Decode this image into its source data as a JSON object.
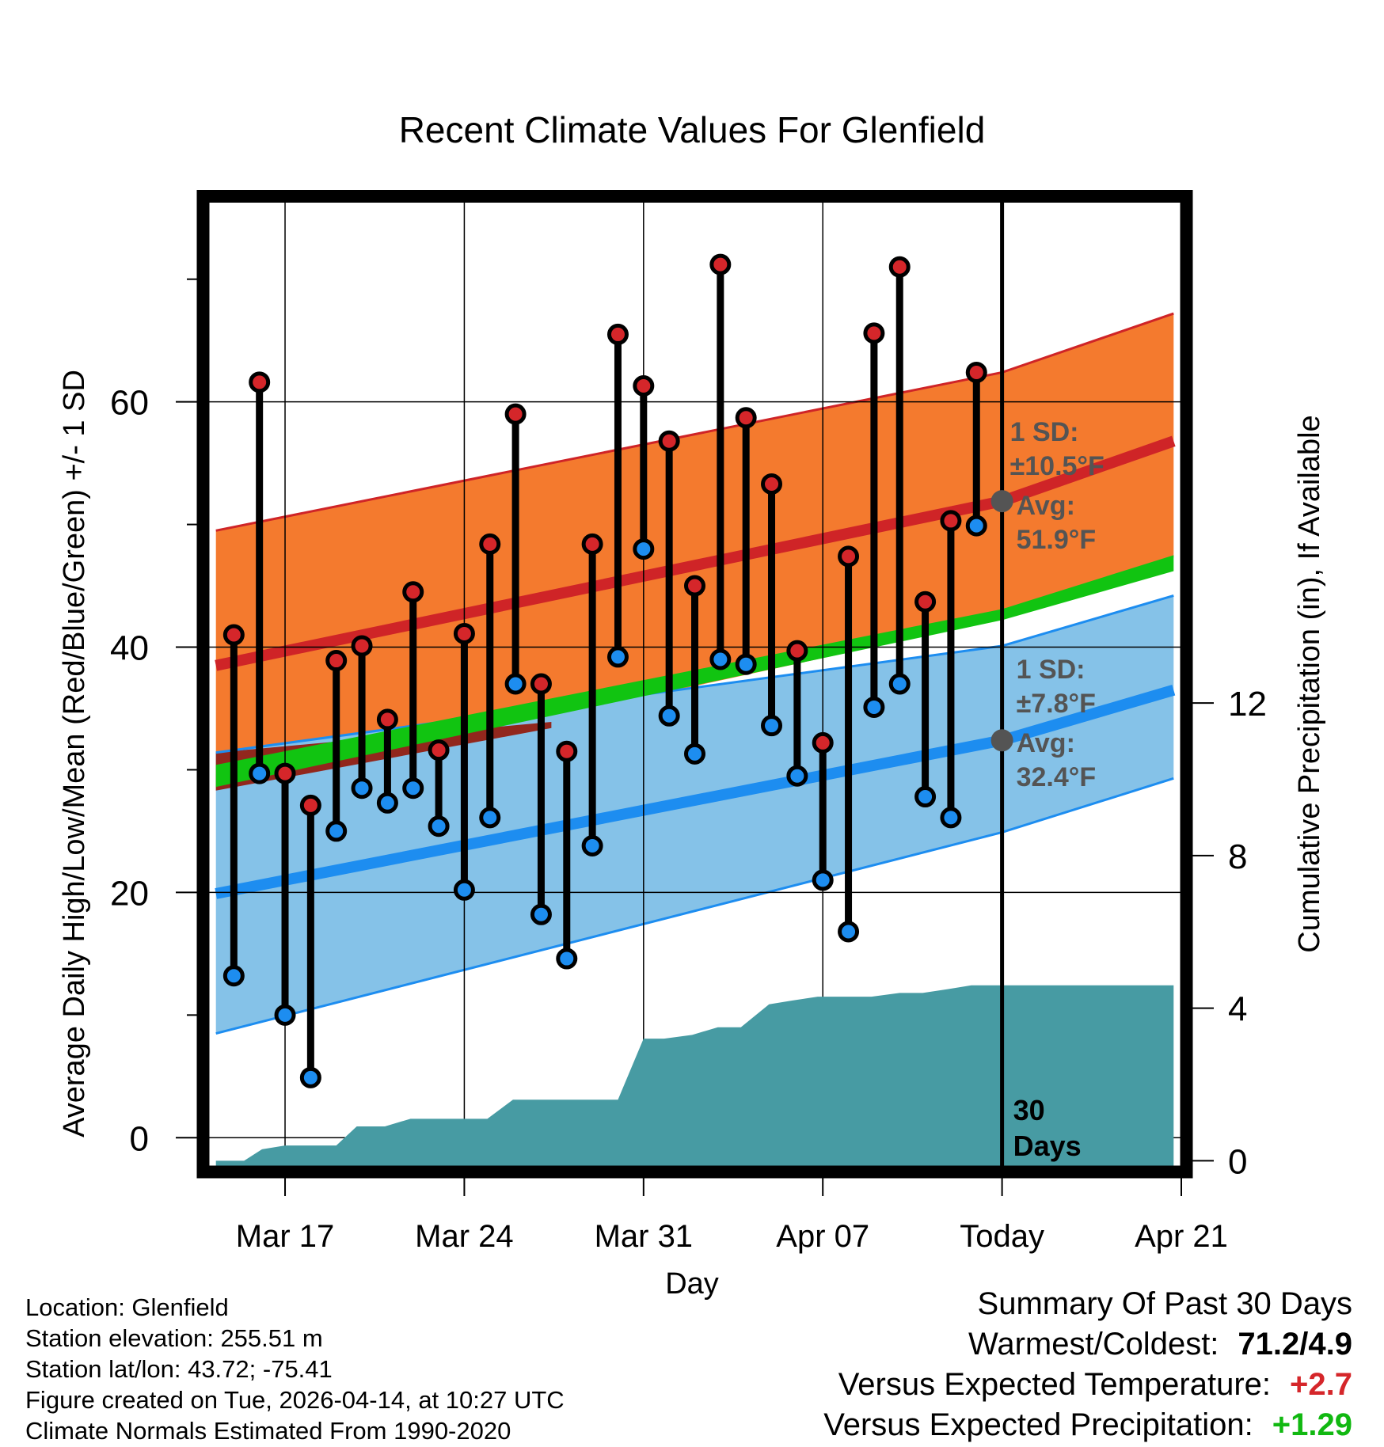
{
  "chart_data": {
    "type": "line",
    "title": "Recent Climate Values For Glenfield",
    "xlabel": "Day",
    "ylabel": "Average Daily High/Low/Mean (Red/Blue/Green) +/- 1 SD",
    "y2label": "Cumulative Precipitation (in), If Available",
    "xlim": [
      -3,
      35
    ],
    "ylim": [
      -2.5,
      76.5
    ],
    "y2lim": [
      -0.2,
      25.2
    ],
    "y_ticks": [
      0,
      20,
      40,
      60
    ],
    "y_minor_ticks": [
      10,
      30,
      50,
      70
    ],
    "y2_ticks": [
      0,
      4,
      8,
      12
    ],
    "x_ticks": [
      {
        "x": 0,
        "label": "Mar 17"
      },
      {
        "x": 7,
        "label": "Mar 24"
      },
      {
        "x": 14,
        "label": "Mar 31"
      },
      {
        "x": 21,
        "label": "Apr 07"
      },
      {
        "x": 28,
        "label": "Today"
      },
      {
        "x": 35,
        "label": "Apr 21"
      }
    ],
    "x_note": "x = days since Mar 17",
    "today_x": 28,
    "today_marker_label": [
      "30",
      "Days"
    ],
    "normals": {
      "x": [
        -2.7,
        28,
        34.7
      ],
      "high_mean": [
        38.5,
        51.9,
        56.8
      ],
      "high_sd_upper": [
        49.5,
        62.4,
        67.2
      ],
      "high_sd_lower": [
        28.3,
        42.3,
        47.3
      ],
      "low_mean": [
        19.9,
        32.4,
        36.5
      ],
      "low_sd_upper": [
        31.4,
        40.1,
        44.2
      ],
      "low_sd_lower": [
        8.5,
        24.9,
        29.3
      ],
      "mean_upper": [
        30.4,
        43.1,
        47.5
      ],
      "mean_lower": [
        28.6,
        42.2,
        46.2
      ]
    },
    "series": [
      {
        "name": "Daily High",
        "x": [
          -2,
          -1,
          0,
          1,
          2,
          3,
          4,
          5,
          6,
          7,
          8,
          9,
          10,
          11,
          12,
          13,
          14,
          15,
          16,
          17,
          18,
          19,
          20,
          21,
          22,
          23,
          24,
          25,
          26,
          27
        ],
        "values": [
          41,
          61.6,
          29.7,
          27.1,
          38.9,
          40.1,
          34.1,
          44.5,
          31.6,
          41.1,
          48.4,
          59,
          37,
          31.5,
          48.4,
          65.5,
          61.3,
          56.8,
          45,
          71.2,
          58.7,
          53.3,
          39.7,
          32.2,
          47.4,
          65.6,
          71,
          43.7,
          50.3,
          62.4
        ]
      },
      {
        "name": "Daily Low",
        "x": [
          -2,
          -1,
          0,
          1,
          2,
          3,
          4,
          5,
          6,
          7,
          8,
          9,
          10,
          11,
          12,
          13,
          14,
          15,
          16,
          17,
          18,
          19,
          20,
          21,
          22,
          23,
          24,
          25,
          26,
          27
        ],
        "values": [
          13.2,
          29.7,
          10,
          4.9,
          25,
          28.5,
          27.3,
          28.5,
          25.4,
          20.2,
          26.1,
          37,
          18.2,
          14.6,
          23.8,
          39.2,
          48,
          34.4,
          31.3,
          39,
          38.6,
          33.6,
          29.5,
          21,
          16.8,
          35.1,
          37,
          27.8,
          26.1,
          49.9
        ]
      },
      {
        "name": "Cumulative Precipitation",
        "axis": "y2",
        "x": [
          -2.7,
          -1.6,
          -0.9,
          0,
          1,
          2,
          2.8,
          3.9,
          4.9,
          5.8,
          6.9,
          7.9,
          8.9,
          9.7,
          10.9,
          11.9,
          13,
          14,
          14.8,
          15.9,
          16.9,
          17.8,
          18.9,
          19.8,
          20.8,
          21.9,
          22.9,
          24,
          24.9,
          25.9,
          26.8,
          27.7,
          34.7
        ],
        "values": [
          0,
          0,
          0.3,
          0.4,
          0.4,
          0.4,
          0.9,
          0.9,
          1.1,
          1.1,
          1.1,
          1.1,
          1.6,
          1.6,
          1.6,
          1.6,
          1.6,
          3.2,
          3.2,
          3.3,
          3.5,
          3.5,
          4.1,
          4.2,
          4.3,
          4.3,
          4.3,
          4.4,
          4.4,
          4.5,
          4.6,
          4.6,
          4.6
        ]
      }
    ],
    "annotations": {
      "high": {
        "sd_label": "1 SD:",
        "sd_value": "±10.5°F",
        "avg_label": "Avg:",
        "avg_value": "51.9°F",
        "avg": 51.9
      },
      "low": {
        "sd_label": "1 SD:",
        "sd_value": "±7.8°F",
        "avg_label": "Avg:",
        "avg_value": "32.4°F",
        "avg": 32.4
      }
    },
    "colors": {
      "high_band": "#f47a2e",
      "high_line": "#cf2427",
      "low_band": "#85c2e8",
      "low_line": "#1d8df0",
      "mean_band": "#11c411",
      "overlap": "#92271d",
      "precip": "#479ba3",
      "high_point": "#d5262a",
      "low_point": "#1d8df0",
      "annotation": "#545454"
    }
  },
  "footer": {
    "location": "Location: Glenfield",
    "elevation": "Station elevation: 255.51 m",
    "latlon": "Station lat/lon: 43.72; -75.41",
    "created": "Figure created on Tue, 2026-04-14, at 10:27 UTC",
    "normals": "Climate Normals Estimated From 1990-2020"
  },
  "summary": {
    "title": "Summary Of Past 30 Days",
    "warmest_coldest_label": "Warmest/Coldest:",
    "warmest_coldest_value": "71.2/4.9",
    "temp_label": "Versus Expected Temperature:",
    "temp_value": "+2.7",
    "precip_label": "Versus Expected Precipitation:",
    "precip_value": "+1.29",
    "temp_color": "#d5262a",
    "precip_color": "#11b811",
    "default_color": "#000000"
  }
}
